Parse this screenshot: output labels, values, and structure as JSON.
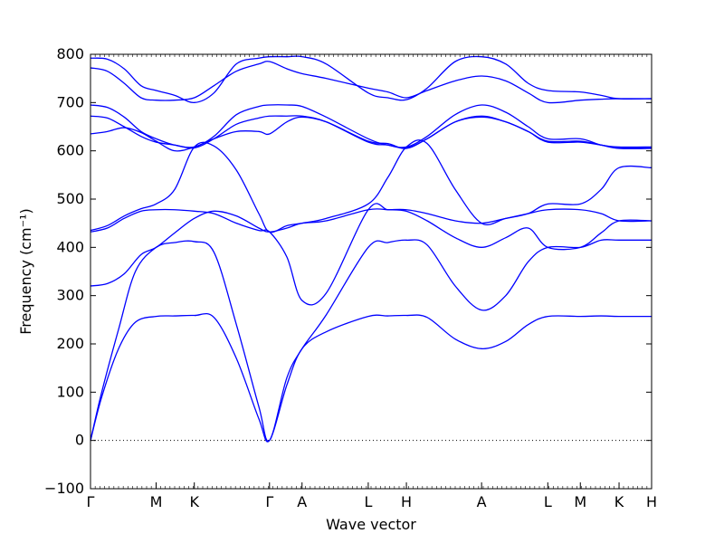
{
  "chart_data": {
    "type": "line",
    "title": "",
    "xlabel": "Wave vector",
    "ylabel": "Frequency (cm⁻¹)",
    "ylim": [
      -100,
      800
    ],
    "yticks": [
      -100,
      0,
      100,
      200,
      300,
      400,
      500,
      600,
      700,
      800
    ],
    "line_color": "#0000ff",
    "zero_line": {
      "y": 0,
      "style": "dotted"
    },
    "grid": false,
    "kpoints": [
      {
        "label": "Γ",
        "x": 0
      },
      {
        "label": "M",
        "x": 0.117
      },
      {
        "label": "K",
        "x": 0.185
      },
      {
        "label": "Γ",
        "x": 0.319
      },
      {
        "label": "A",
        "x": 0.377
      },
      {
        "label": "L",
        "x": 0.495
      },
      {
        "label": "H",
        "x": 0.563
      },
      {
        "label": "A",
        "x": 0.697
      },
      {
        "label": "L",
        "x": 0.815
      },
      {
        "label": "M",
        "x": 0.873
      },
      {
        "label": "K",
        "x": 0.942
      },
      {
        "label": "H",
        "x": 1.0
      }
    ],
    "series": [
      {
        "x": [
          0,
          0.02,
          0.05,
          0.08,
          0.117,
          0.15,
          0.185,
          0.22,
          0.26,
          0.3,
          0.319,
          0.35,
          0.377,
          0.42,
          0.495,
          0.53,
          0.563,
          0.6,
          0.65,
          0.697,
          0.74,
          0.78,
          0.815,
          0.873,
          0.91,
          0.942,
          1.0
        ],
        "y": [
          0,
          90,
          190,
          245,
          257,
          258,
          259,
          255,
          170,
          45,
          0,
          115,
          190,
          225,
          257,
          258,
          259,
          255,
          210,
          190,
          205,
          240,
          257,
          257,
          258,
          257,
          257
        ]
      },
      {
        "x": [
          0,
          0.02,
          0.05,
          0.08,
          0.117,
          0.15,
          0.185,
          0.22,
          0.26,
          0.3,
          0.319,
          0.35,
          0.377,
          0.42,
          0.495,
          0.53,
          0.563,
          0.6,
          0.65,
          0.697,
          0.74,
          0.78,
          0.815,
          0.873,
          0.91,
          0.942,
          1.0
        ],
        "y": [
          0,
          100,
          230,
          350,
          400,
          410,
          412,
          390,
          240,
          70,
          0,
          130,
          190,
          260,
          400,
          410,
          415,
          405,
          320,
          270,
          300,
          370,
          400,
          400,
          415,
          415,
          415
        ]
      },
      {
        "x": [
          0,
          0.03,
          0.06,
          0.09,
          0.117,
          0.15,
          0.185,
          0.22,
          0.26,
          0.3,
          0.319,
          0.35,
          0.377,
          0.42,
          0.495,
          0.53,
          0.563,
          0.6,
          0.65,
          0.697,
          0.74,
          0.78,
          0.815,
          0.873,
          0.91,
          0.942,
          1.0
        ],
        "y": [
          320,
          325,
          345,
          385,
          400,
          430,
          460,
          475,
          465,
          440,
          432,
          440,
          450,
          455,
          478,
          478,
          475,
          455,
          420,
          400,
          420,
          440,
          400,
          400,
          430,
          455,
          455
        ]
      },
      {
        "x": [
          0,
          0.03,
          0.06,
          0.09,
          0.117,
          0.15,
          0.185,
          0.22,
          0.26,
          0.3,
          0.319,
          0.35,
          0.377,
          0.42,
          0.495,
          0.53,
          0.563,
          0.6,
          0.65,
          0.697,
          0.74,
          0.78,
          0.815,
          0.873,
          0.91,
          0.942,
          1.0
        ],
        "y": [
          432,
          440,
          460,
          475,
          478,
          478,
          475,
          470,
          450,
          435,
          432,
          380,
          290,
          305,
          478,
          478,
          478,
          470,
          455,
          450,
          460,
          470,
          478,
          478,
          470,
          455,
          455
        ]
      },
      {
        "x": [
          0,
          0.03,
          0.06,
          0.09,
          0.117,
          0.15,
          0.185,
          0.22,
          0.26,
          0.3,
          0.319,
          0.35,
          0.377,
          0.42,
          0.495,
          0.53,
          0.563,
          0.6,
          0.65,
          0.697,
          0.74,
          0.78,
          0.815,
          0.873,
          0.91,
          0.942,
          1.0
        ],
        "y": [
          435,
          445,
          465,
          480,
          490,
          520,
          608,
          610,
          560,
          470,
          432,
          445,
          450,
          460,
          490,
          545,
          608,
          615,
          520,
          450,
          460,
          470,
          490,
          490,
          520,
          565,
          565
        ]
      },
      {
        "x": [
          0,
          0.03,
          0.06,
          0.09,
          0.117,
          0.15,
          0.185,
          0.22,
          0.26,
          0.3,
          0.319,
          0.35,
          0.377,
          0.42,
          0.495,
          0.53,
          0.563,
          0.6,
          0.65,
          0.697,
          0.74,
          0.78,
          0.815,
          0.873,
          0.91,
          0.942,
          1.0
        ],
        "y": [
          635,
          640,
          648,
          638,
          620,
          600,
          608,
          625,
          640,
          640,
          635,
          660,
          670,
          660,
          620,
          615,
          605,
          625,
          660,
          670,
          660,
          640,
          620,
          620,
          612,
          605,
          605
        ]
      },
      {
        "x": [
          0,
          0.03,
          0.06,
          0.09,
          0.117,
          0.15,
          0.185,
          0.22,
          0.26,
          0.3,
          0.319,
          0.35,
          0.377,
          0.42,
          0.495,
          0.53,
          0.563,
          0.6,
          0.65,
          0.697,
          0.74,
          0.78,
          0.815,
          0.873,
          0.91,
          0.942,
          1.0
        ],
        "y": [
          672,
          668,
          650,
          630,
          618,
          612,
          606,
          625,
          655,
          668,
          672,
          672,
          672,
          660,
          618,
          612,
          606,
          625,
          660,
          672,
          660,
          640,
          618,
          618,
          612,
          606,
          606
        ]
      },
      {
        "x": [
          0,
          0.03,
          0.06,
          0.09,
          0.117,
          0.15,
          0.185,
          0.22,
          0.26,
          0.3,
          0.319,
          0.35,
          0.377,
          0.42,
          0.495,
          0.53,
          0.563,
          0.6,
          0.65,
          0.697,
          0.74,
          0.78,
          0.815,
          0.873,
          0.91,
          0.942,
          1.0
        ],
        "y": [
          695,
          690,
          670,
          640,
          625,
          612,
          608,
          630,
          675,
          692,
          695,
          695,
          692,
          670,
          625,
          612,
          608,
          630,
          675,
          695,
          680,
          650,
          625,
          625,
          612,
          608,
          608
        ]
      },
      {
        "x": [
          0,
          0.03,
          0.06,
          0.09,
          0.117,
          0.15,
          0.185,
          0.22,
          0.26,
          0.3,
          0.319,
          0.35,
          0.377,
          0.42,
          0.495,
          0.53,
          0.563,
          0.6,
          0.65,
          0.697,
          0.74,
          0.78,
          0.815,
          0.873,
          0.91,
          0.942,
          1.0
        ],
        "y": [
          772,
          765,
          740,
          710,
          705,
          705,
          710,
          735,
          765,
          780,
          785,
          770,
          760,
          750,
          730,
          722,
          710,
          725,
          745,
          755,
          745,
          720,
          700,
          705,
          707,
          708,
          708
        ]
      },
      {
        "x": [
          0,
          0.03,
          0.06,
          0.09,
          0.117,
          0.15,
          0.185,
          0.22,
          0.26,
          0.3,
          0.319,
          0.35,
          0.377,
          0.42,
          0.495,
          0.53,
          0.563,
          0.6,
          0.65,
          0.697,
          0.74,
          0.78,
          0.815,
          0.873,
          0.91,
          0.942,
          1.0
        ],
        "y": [
          792,
          790,
          770,
          735,
          725,
          715,
          700,
          720,
          780,
          792,
          795,
          795,
          795,
          780,
          720,
          710,
          706,
          730,
          785,
          795,
          780,
          740,
          725,
          722,
          715,
          708,
          708
        ]
      }
    ]
  }
}
